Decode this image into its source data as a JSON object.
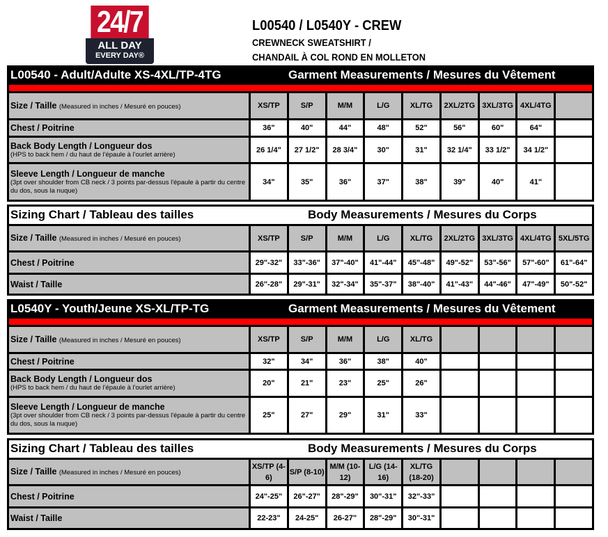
{
  "logo": {
    "top": "24/7",
    "line1": "ALL DAY",
    "line2": "EVERY DAY®"
  },
  "header": {
    "title": "L00540 / L0540Y - CREW",
    "sub1": "CREWNECK SWEATSHIRT /",
    "sub2": "CHANDAIL À COL ROND EN MOLLETON"
  },
  "tables": [
    {
      "left": "L00540 - Adult/Adulte XS-4XL/TP-4TG",
      "right": "Garment Measurements / Mesures du Vêtement",
      "style": "black",
      "rows": [
        {
          "label": "Size / Taille",
          "note": "(Measured in inches / Mesuré en pouces)",
          "inline": true,
          "header": true,
          "cells": [
            "XS/TP",
            "S/P",
            "M/M",
            "L/G",
            "XL/TG",
            "2XL/2TG",
            "3XL/3TG",
            "4XL/4TG",
            ""
          ]
        },
        {
          "label": "Chest / Poitrine",
          "cells": [
            "36\"",
            "40\"",
            "44\"",
            "48\"",
            "52\"",
            "56\"",
            "60\"",
            "64\"",
            ""
          ]
        },
        {
          "label": "Back Body Length / Longueur dos",
          "note": "(HPS to back hem  / du haut de l'épaule à l'ourlet arrière)",
          "cells": [
            "26 1/4\"",
            "27 1/2\"",
            "28 3/4\"",
            "30\"",
            "31\"",
            "32 1/4\"",
            "33 1/2\"",
            "34 1/2\"",
            ""
          ]
        },
        {
          "label": "Sleeve Length / Longueur de manche",
          "note": "(3pt over shoulder from CB neck / 3 points par-dessus l'épaule à partir du centre du dos, sous la nuque)",
          "cells": [
            "34\"",
            "35\"",
            "36\"",
            "37\"",
            "38\"",
            "39\"",
            "40\"",
            "41\"",
            ""
          ]
        }
      ]
    },
    {
      "left": "Sizing Chart / Tableau des tailles",
      "right": "Body Measurements / Mesures du Corps",
      "style": "white",
      "rows": [
        {
          "label": "Size / Taille",
          "note": "(Measured in inches / Mesuré en pouces)",
          "inline": true,
          "header": true,
          "cells": [
            "XS/TP",
            "S/P",
            "M/M",
            "L/G",
            "XL/TG",
            "2XL/2TG",
            "3XL/3TG",
            "4XL/4TG",
            "5XL/5TG"
          ]
        },
        {
          "label": "Chest / Poitrine",
          "cells": [
            "29\"-32\"",
            "33\"-36\"",
            "37\"-40\"",
            "41\"-44\"",
            "45\"-48\"",
            "49\"-52\"",
            "53\"-56\"",
            "57\"-60\"",
            "61\"-64\""
          ]
        },
        {
          "label": "Waist / Taille",
          "cells": [
            "26\"-28\"",
            "29\"-31\"",
            "32\"-34\"",
            "35\"-37\"",
            "38\"-40\"",
            "41\"-43\"",
            "44\"-46\"",
            "47\"-49\"",
            "50\"-52\""
          ]
        }
      ]
    },
    {
      "left": "L0540Y - Youth/Jeune XS-XL/TP-TG",
      "right": "Garment Measurements / Mesures du Vêtement",
      "style": "black",
      "rows": [
        {
          "label": "Size / Taille",
          "note": "(Measured in inches / Mesuré en pouces)",
          "inline": true,
          "header": true,
          "cells": [
            "XS/TP",
            "S/P",
            "M/M",
            "L/G",
            "XL/TG",
            "",
            "",
            "",
            ""
          ]
        },
        {
          "label": "Chest / Poitrine",
          "cells": [
            "32\"",
            "34\"",
            "36\"",
            "38\"",
            "40\"",
            "",
            "",
            "",
            ""
          ]
        },
        {
          "label": "Back Body Length / Longueur dos",
          "note": "(HPS to back hem  / du haut de l'épaule à l'ourlet arrière)",
          "cells": [
            "20\"",
            "21\"",
            "23\"",
            "25\"",
            "26\"",
            "",
            "",
            "",
            ""
          ]
        },
        {
          "label": "Sleeve Length / Longueur de manche",
          "note": "(3pt over shoulder from CB neck / 3 points par-dessus l'épaule à partir du centre du dos, sous la nuque)",
          "cells": [
            "25\"",
            "27\"",
            "29\"",
            "31\"",
            "33\"",
            "",
            "",
            "",
            ""
          ]
        }
      ]
    },
    {
      "left": "Sizing Chart / Tableau des tailles",
      "right": "Body Measurements / Mesures du Corps",
      "style": "white",
      "rows": [
        {
          "label": "Size / Taille",
          "note": "(Measured in inches / Mesuré en pouces)",
          "inline": true,
          "header": true,
          "cells": [
            "XS/TP (4-6)",
            "S/P (8-10)",
            "M/M (10-12)",
            "L/G (14-16)",
            "XL/TG (18-20)",
            "",
            "",
            "",
            ""
          ]
        },
        {
          "label": "Chest / Poitrine",
          "cells": [
            "24\"-25\"",
            "26\"-27\"",
            "28\"-29\"",
            "30\"-31\"",
            "32\"-33\"",
            "",
            "",
            "",
            ""
          ]
        },
        {
          "label": "Waist / Taille",
          "cells": [
            "22-23\"",
            "24-25\"",
            "26-27\"",
            "28\"-29\"",
            "30\"-31\"",
            "",
            "",
            "",
            ""
          ]
        }
      ]
    }
  ]
}
